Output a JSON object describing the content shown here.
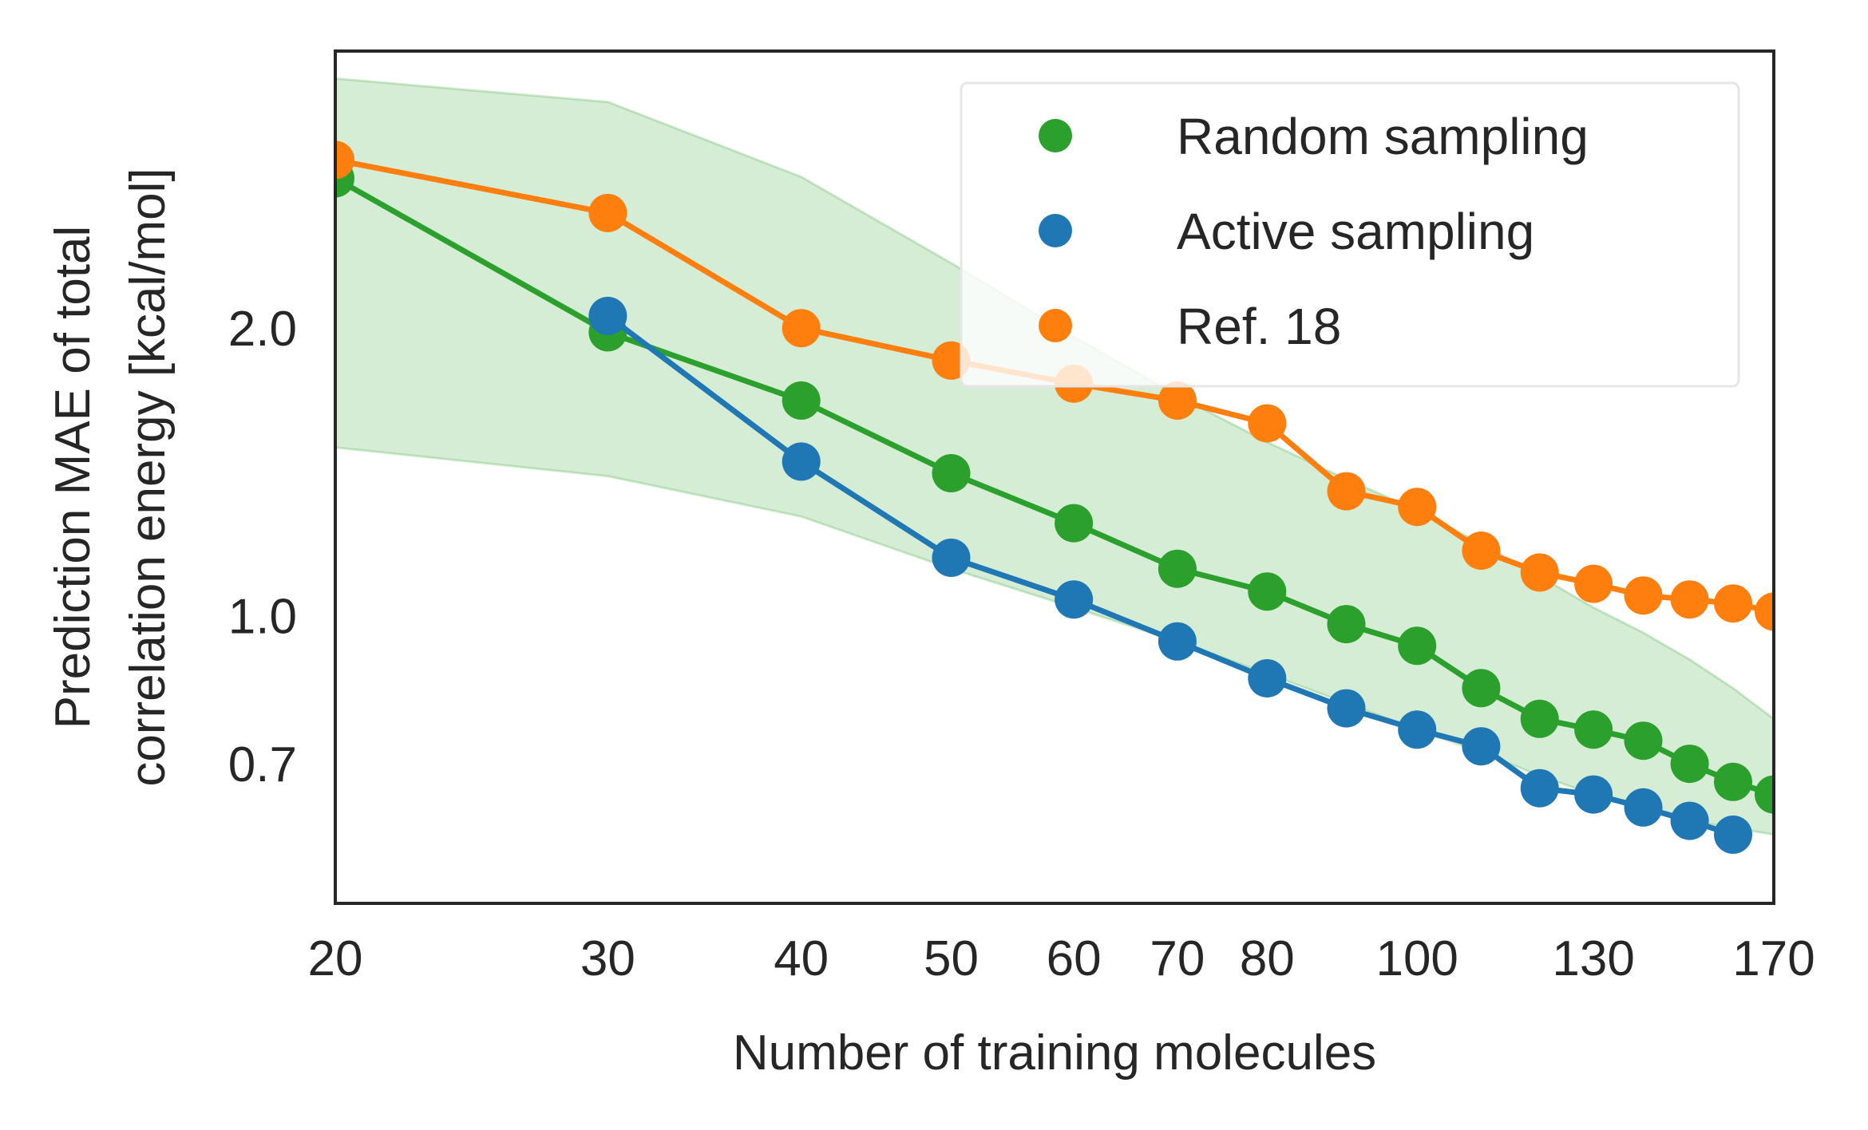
{
  "chart_data": {
    "type": "line",
    "title": "",
    "xlabel": "Number of training molecules",
    "ylabel_lines": [
      "Prediction MAE of total",
      "correlation energy [kcal/mol]"
    ],
    "xscale": "log",
    "yscale": "log",
    "xlim": [
      20,
      170
    ],
    "ylim": [
      0.5,
      3.9
    ],
    "xticks": [
      20,
      30,
      40,
      50,
      60,
      70,
      80,
      100,
      130,
      170
    ],
    "xtick_labels": [
      "20",
      "30",
      "40",
      "50",
      "60",
      "70",
      "80",
      "100",
      "130",
      "170"
    ],
    "yticks": [
      0.7,
      1.0,
      2.0
    ],
    "ytick_labels": [
      "0.7",
      "1.0",
      "2.0"
    ],
    "grid": false,
    "legend_position": "top-right",
    "series": [
      {
        "name": "Random sampling",
        "color": "#2ca02c",
        "x": [
          20,
          30,
          40,
          50,
          60,
          70,
          80,
          90,
          100,
          110,
          120,
          130,
          140,
          150,
          160,
          170
        ],
        "values": [
          2.87,
          1.98,
          1.68,
          1.41,
          1.25,
          1.12,
          1.06,
          0.98,
          0.93,
          0.84,
          0.78,
          0.76,
          0.74,
          0.7,
          0.67,
          0.65
        ]
      },
      {
        "name": "Active sampling",
        "color": "#1f77b4",
        "x": [
          30,
          40,
          50,
          60,
          70,
          80,
          90,
          100,
          110,
          120,
          130,
          140,
          150,
          160
        ],
        "values": [
          2.06,
          1.45,
          1.15,
          1.04,
          0.94,
          0.86,
          0.8,
          0.76,
          0.73,
          0.66,
          0.65,
          0.63,
          0.61,
          0.59
        ]
      },
      {
        "name": "Ref. 18",
        "color": "#ff7f0e",
        "x": [
          20,
          30,
          40,
          50,
          60,
          70,
          80,
          90,
          100,
          110,
          120,
          130,
          140,
          150,
          160,
          170
        ],
        "values": [
          3.0,
          2.64,
          2.0,
          1.85,
          1.75,
          1.68,
          1.59,
          1.35,
          1.3,
          1.17,
          1.11,
          1.08,
          1.05,
          1.04,
          1.03,
          1.01
        ]
      }
    ],
    "band": {
      "series": "Random sampling",
      "color": "#2ca02c",
      "x": [
        20,
        30,
        40,
        50,
        60,
        70,
        80,
        90,
        100,
        110,
        120,
        130,
        140,
        150,
        160,
        170
      ],
      "upper": [
        3.65,
        3.45,
        2.88,
        2.34,
        1.96,
        1.7,
        1.52,
        1.39,
        1.29,
        1.19,
        1.1,
        1.02,
        0.96,
        0.9,
        0.84,
        0.78
      ],
      "lower": [
        1.5,
        1.4,
        1.27,
        1.12,
        1.02,
        0.94,
        0.87,
        0.81,
        0.76,
        0.72,
        0.68,
        0.65,
        0.63,
        0.61,
        0.6,
        0.59
      ]
    }
  }
}
